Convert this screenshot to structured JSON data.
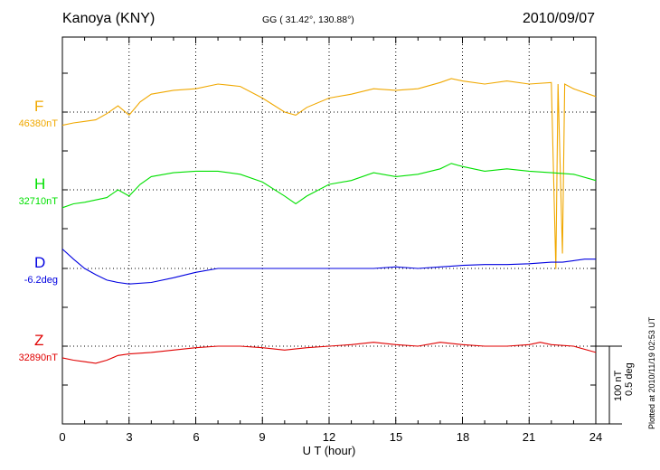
{
  "header": {
    "station": "Kanoya (KNY)",
    "coords": "GG ( 31.42°, 130.88°)",
    "date": "2010/09/07"
  },
  "plotted_note": "Plotted at 2010/11/19 02:53 UT",
  "scale": {
    "nt": "100 nT",
    "deg": "0.5 deg"
  },
  "chart_data": {
    "type": "line",
    "xlabel": "U T (hour)",
    "x_ticks": [
      "0",
      "3",
      "6",
      "9",
      "12",
      "15",
      "18",
      "21",
      "24"
    ],
    "xlim": [
      0,
      24
    ],
    "grid": "dotted",
    "scale_bar": "100 nT / 0.5 deg per bar",
    "channels": [
      {
        "key": "F",
        "label": "F",
        "baseline": "46380nT",
        "color": "#f0a800",
        "y_offset": 0.18,
        "points": [
          [
            0,
            -0.35
          ],
          [
            0.5,
            -0.32
          ],
          [
            1.0,
            -0.3
          ],
          [
            1.5,
            -0.28
          ],
          [
            2.0,
            -0.2
          ],
          [
            2.5,
            -0.1
          ],
          [
            3.0,
            -0.22
          ],
          [
            3.5,
            -0.05
          ],
          [
            4.0,
            0.05
          ],
          [
            5.0,
            0.1
          ],
          [
            6.0,
            0.12
          ],
          [
            7.0,
            0.18
          ],
          [
            8.0,
            0.15
          ],
          [
            9.0,
            0.0
          ],
          [
            10.0,
            -0.18
          ],
          [
            10.5,
            -0.22
          ],
          [
            11.0,
            -0.12
          ],
          [
            12.0,
            0.0
          ],
          [
            13.0,
            0.05
          ],
          [
            14.0,
            0.12
          ],
          [
            15.0,
            0.1
          ],
          [
            16.0,
            0.12
          ],
          [
            17.0,
            0.2
          ],
          [
            17.5,
            0.25
          ],
          [
            18.0,
            0.22
          ],
          [
            19.0,
            0.18
          ],
          [
            20.0,
            0.22
          ],
          [
            21.0,
            0.18
          ],
          [
            22.0,
            0.2
          ],
          [
            22.2,
            -2.2
          ],
          [
            22.3,
            0.18
          ],
          [
            22.5,
            -2.0
          ],
          [
            22.6,
            0.18
          ],
          [
            23.0,
            0.12
          ],
          [
            24.0,
            0.02
          ]
        ]
      },
      {
        "key": "H",
        "label": "H",
        "baseline": "32710nT",
        "color": "#00e000",
        "y_offset": 0.12,
        "points": [
          [
            0,
            -0.35
          ],
          [
            0.5,
            -0.3
          ],
          [
            1.0,
            -0.28
          ],
          [
            2.0,
            -0.22
          ],
          [
            2.5,
            -0.12
          ],
          [
            3.0,
            -0.2
          ],
          [
            3.5,
            -0.05
          ],
          [
            4.0,
            0.05
          ],
          [
            5.0,
            0.1
          ],
          [
            6.0,
            0.12
          ],
          [
            7.0,
            0.12
          ],
          [
            8.0,
            0.08
          ],
          [
            9.0,
            -0.02
          ],
          [
            10.0,
            -0.2
          ],
          [
            10.5,
            -0.3
          ],
          [
            11.0,
            -0.2
          ],
          [
            12.0,
            -0.05
          ],
          [
            13.0,
            0.0
          ],
          [
            14.0,
            0.1
          ],
          [
            15.0,
            0.05
          ],
          [
            16.0,
            0.08
          ],
          [
            17.0,
            0.15
          ],
          [
            17.5,
            0.22
          ],
          [
            18.0,
            0.18
          ],
          [
            19.0,
            0.12
          ],
          [
            20.0,
            0.15
          ],
          [
            21.0,
            0.12
          ],
          [
            22.0,
            0.1
          ],
          [
            23.0,
            0.08
          ],
          [
            24.0,
            0.0
          ]
        ]
      },
      {
        "key": "D",
        "label": "D",
        "baseline": "-6.2deg",
        "color": "#0000e0",
        "y_offset": 0.0,
        "points": [
          [
            0,
            0.25
          ],
          [
            0.5,
            0.12
          ],
          [
            1.0,
            0.0
          ],
          [
            1.5,
            -0.08
          ],
          [
            2.0,
            -0.15
          ],
          [
            2.5,
            -0.18
          ],
          [
            3.0,
            -0.2
          ],
          [
            4.0,
            -0.18
          ],
          [
            5.0,
            -0.12
          ],
          [
            6.0,
            -0.05
          ],
          [
            7.0,
            0.0
          ],
          [
            8.0,
            0.0
          ],
          [
            9.0,
            0.0
          ],
          [
            10.0,
            0.0
          ],
          [
            11.0,
            0.0
          ],
          [
            12.0,
            0.0
          ],
          [
            13.0,
            0.0
          ],
          [
            14.0,
            0.0
          ],
          [
            15.0,
            0.02
          ],
          [
            16.0,
            0.0
          ],
          [
            17.0,
            0.02
          ],
          [
            18.0,
            0.04
          ],
          [
            19.0,
            0.05
          ],
          [
            20.0,
            0.05
          ],
          [
            21.0,
            0.06
          ],
          [
            22.0,
            0.08
          ],
          [
            22.5,
            0.08
          ],
          [
            23.0,
            0.1
          ],
          [
            23.5,
            0.12
          ],
          [
            24.0,
            0.12
          ]
        ]
      },
      {
        "key": "Z",
        "label": "Z",
        "baseline": "32890nT",
        "color": "#e00000",
        "y_offset": 0.0,
        "points": [
          [
            0,
            -0.15
          ],
          [
            0.5,
            -0.18
          ],
          [
            1.0,
            -0.2
          ],
          [
            1.5,
            -0.22
          ],
          [
            2.0,
            -0.18
          ],
          [
            2.5,
            -0.12
          ],
          [
            3.0,
            -0.1
          ],
          [
            4.0,
            -0.08
          ],
          [
            5.0,
            -0.05
          ],
          [
            6.0,
            -0.02
          ],
          [
            7.0,
            0.0
          ],
          [
            8.0,
            0.0
          ],
          [
            9.0,
            -0.02
          ],
          [
            10.0,
            -0.05
          ],
          [
            11.0,
            -0.02
          ],
          [
            12.0,
            0.0
          ],
          [
            13.0,
            0.02
          ],
          [
            14.0,
            0.05
          ],
          [
            15.0,
            0.02
          ],
          [
            16.0,
            0.0
          ],
          [
            17.0,
            0.05
          ],
          [
            18.0,
            0.02
          ],
          [
            19.0,
            0.0
          ],
          [
            20.0,
            0.0
          ],
          [
            21.0,
            0.02
          ],
          [
            21.5,
            0.05
          ],
          [
            22.0,
            0.02
          ],
          [
            23.0,
            0.0
          ],
          [
            24.0,
            -0.08
          ]
        ]
      }
    ]
  }
}
